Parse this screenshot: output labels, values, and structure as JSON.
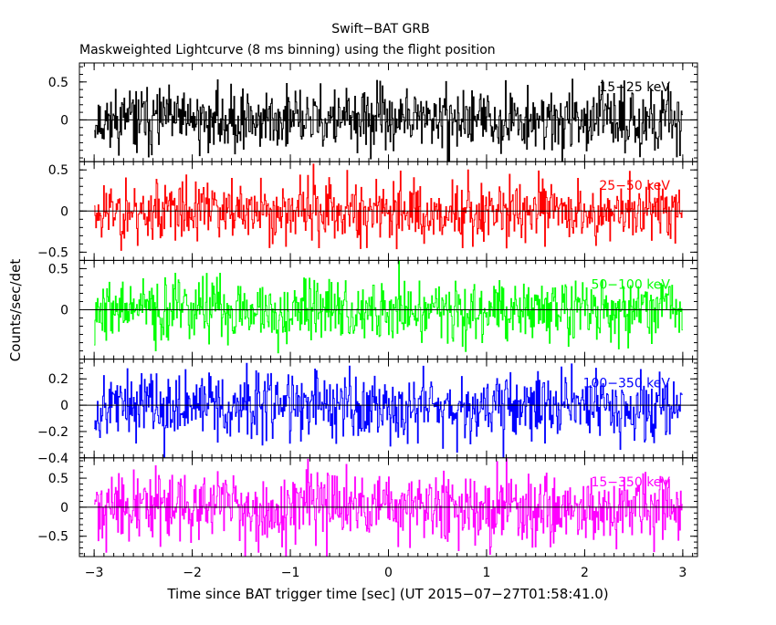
{
  "chart_data": {
    "type": "line",
    "title": "Swift−BAT GRB",
    "subtitle": "Maskweighted Lightcurve (8 ms binning) using the flight position",
    "xlabel": "Time since BAT trigger time [sec] (UT 2015−07−27T01:58:41.0)",
    "ylabel": "Counts/sec/det",
    "xlim": [
      -3.15,
      3.15
    ],
    "x_ticks": [
      -3,
      -2,
      -1,
      0,
      1,
      2,
      3
    ],
    "x_tick_labels": [
      "−3",
      "−2",
      "−1",
      "0",
      "1",
      "2",
      "3"
    ],
    "binning_sec": 0.008,
    "x_range": [
      -3.0,
      3.0
    ],
    "panels": [
      {
        "name": "15−25 keV",
        "color": "#000000",
        "ylim": [
          -0.55,
          0.75
        ],
        "y_ticks": [
          0,
          0.5
        ],
        "y_tick_labels": [
          "0",
          "0.5"
        ],
        "amplitude_rms": 0.2,
        "clip": [
          -0.55,
          0.75
        ],
        "seed": 11
      },
      {
        "name": "25−50 keV",
        "color": "#ff0000",
        "ylim": [
          -0.6,
          0.6
        ],
        "y_ticks": [
          -0.5,
          0,
          0.5
        ],
        "y_tick_labels": [
          "−0.5",
          "0",
          "0.5"
        ],
        "amplitude_rms": 0.19,
        "clip": [
          -0.6,
          0.6
        ],
        "seed": 23
      },
      {
        "name": "50−100 keV",
        "color": "#00ff00",
        "ylim": [
          -0.6,
          0.6
        ],
        "y_ticks": [
          0,
          0.5
        ],
        "y_tick_labels": [
          "0",
          "0.5"
        ],
        "amplitude_rms": 0.19,
        "clip": [
          -0.6,
          0.6
        ],
        "seed": 37
      },
      {
        "name": "100−350 keV",
        "color": "#0000ff",
        "ylim": [
          -0.4,
          0.35
        ],
        "y_ticks": [
          -0.4,
          -0.2,
          0,
          0.2
        ],
        "y_tick_labels": [
          "−0.4",
          "−0.2",
          "0",
          "0.2"
        ],
        "amplitude_rms": 0.13,
        "clip": [
          -0.4,
          0.35
        ],
        "seed": 53
      },
      {
        "name": "15−350 keV",
        "color": "#ff00ff",
        "ylim": [
          -0.85,
          0.85
        ],
        "y_ticks": [
          -0.5,
          0,
          0.5
        ],
        "y_tick_labels": [
          "−0.5",
          "0",
          "0.5"
        ],
        "amplitude_rms": 0.3,
        "clip": [
          -0.85,
          0.85
        ],
        "seed": 71
      }
    ]
  }
}
